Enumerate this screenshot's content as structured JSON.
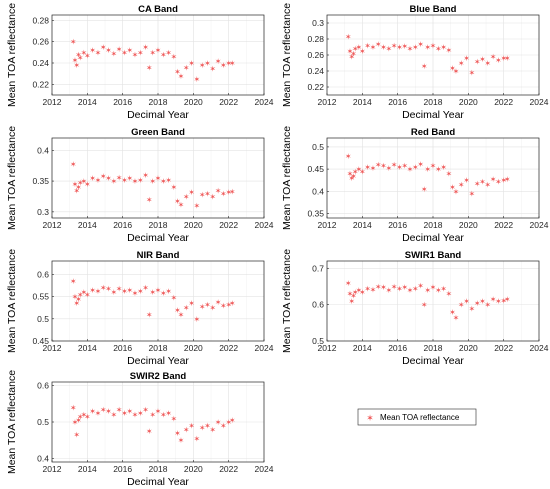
{
  "colors": {
    "marker": "#ef5a5a",
    "grid": "#e3e3e3",
    "axis": "#262626"
  },
  "legend": {
    "label": "Mean TOA reflectance"
  },
  "chart_data": [
    {
      "type": "scatter",
      "title": "CA Band",
      "xlabel": "Decimal Year",
      "ylabel": "Mean TOA reflectance",
      "xlim": [
        2012,
        2024
      ],
      "ylim": [
        0.21,
        0.285
      ],
      "xticks": [
        "2012",
        "2014",
        "2016",
        "2018",
        "2020",
        "2022",
        "2024"
      ],
      "yticks": [
        "0.22",
        "0.24",
        "0.26",
        "0.28"
      ],
      "x": [
        2013.2,
        2013.3,
        2013.4,
        2013.5,
        2013.6,
        2013.8,
        2014.0,
        2014.3,
        2014.6,
        2014.9,
        2015.2,
        2015.5,
        2015.8,
        2016.1,
        2016.4,
        2016.7,
        2017.0,
        2017.3,
        2017.5,
        2017.7,
        2018.0,
        2018.3,
        2018.6,
        2018.9,
        2019.1,
        2019.3,
        2019.6,
        2019.9,
        2020.2,
        2020.5,
        2020.8,
        2021.1,
        2021.4,
        2021.7,
        2022.0,
        2022.2
      ],
      "y": [
        0.26,
        0.243,
        0.238,
        0.248,
        0.245,
        0.25,
        0.247,
        0.252,
        0.25,
        0.255,
        0.252,
        0.249,
        0.253,
        0.25,
        0.252,
        0.248,
        0.25,
        0.255,
        0.236,
        0.25,
        0.252,
        0.248,
        0.25,
        0.246,
        0.232,
        0.228,
        0.236,
        0.24,
        0.225,
        0.238,
        0.24,
        0.235,
        0.242,
        0.238,
        0.24,
        0.24
      ]
    },
    {
      "type": "scatter",
      "title": "Blue Band",
      "xlabel": "Decimal Year",
      "ylabel": "Mean TOA reflectance",
      "xlim": [
        2012,
        2024
      ],
      "ylim": [
        0.21,
        0.31
      ],
      "xticks": [
        "2012",
        "2014",
        "2016",
        "2018",
        "2020",
        "2022",
        "2024"
      ],
      "yticks": [
        "0.22",
        "0.24",
        "0.26",
        "0.28",
        "0.3"
      ],
      "x": [
        2013.2,
        2013.3,
        2013.4,
        2013.5,
        2013.6,
        2013.8,
        2014.0,
        2014.3,
        2014.6,
        2014.9,
        2015.2,
        2015.5,
        2015.8,
        2016.1,
        2016.4,
        2016.7,
        2017.0,
        2017.3,
        2017.5,
        2017.7,
        2018.0,
        2018.3,
        2018.6,
        2018.9,
        2019.1,
        2019.3,
        2019.6,
        2019.9,
        2020.2,
        2020.5,
        2020.8,
        2021.1,
        2021.4,
        2021.7,
        2022.0,
        2022.2
      ],
      "y": [
        0.283,
        0.265,
        0.258,
        0.262,
        0.268,
        0.27,
        0.265,
        0.272,
        0.27,
        0.274,
        0.27,
        0.268,
        0.272,
        0.27,
        0.271,
        0.268,
        0.27,
        0.274,
        0.246,
        0.27,
        0.272,
        0.268,
        0.27,
        0.266,
        0.244,
        0.24,
        0.25,
        0.256,
        0.238,
        0.252,
        0.255,
        0.25,
        0.258,
        0.254,
        0.256,
        0.256
      ]
    },
    {
      "type": "scatter",
      "title": "Green Band",
      "xlabel": "Decimal Year",
      "ylabel": "Mean TOA reflectance",
      "xlim": [
        2012,
        2024
      ],
      "ylim": [
        0.29,
        0.42
      ],
      "xticks": [
        "2012",
        "2014",
        "2016",
        "2018",
        "2020",
        "2022",
        "2024"
      ],
      "yticks": [
        "0.3",
        "0.35",
        "0.4"
      ],
      "x": [
        2013.2,
        2013.3,
        2013.4,
        2013.5,
        2013.6,
        2013.8,
        2014.0,
        2014.3,
        2014.6,
        2014.9,
        2015.2,
        2015.5,
        2015.8,
        2016.1,
        2016.4,
        2016.7,
        2017.0,
        2017.3,
        2017.5,
        2017.7,
        2018.0,
        2018.3,
        2018.6,
        2018.9,
        2019.1,
        2019.3,
        2019.6,
        2019.9,
        2020.2,
        2020.5,
        2020.8,
        2021.1,
        2021.4,
        2021.7,
        2022.0,
        2022.2
      ],
      "y": [
        0.378,
        0.345,
        0.335,
        0.34,
        0.348,
        0.35,
        0.345,
        0.355,
        0.352,
        0.358,
        0.355,
        0.35,
        0.356,
        0.352,
        0.355,
        0.35,
        0.352,
        0.36,
        0.32,
        0.35,
        0.355,
        0.35,
        0.352,
        0.34,
        0.318,
        0.312,
        0.325,
        0.332,
        0.31,
        0.328,
        0.33,
        0.325,
        0.335,
        0.33,
        0.332,
        0.333
      ]
    },
    {
      "type": "scatter",
      "title": "Red Band",
      "xlabel": "Decimal Year",
      "ylabel": "Mean TOA reflectance",
      "xlim": [
        2012,
        2024
      ],
      "ylim": [
        0.34,
        0.52
      ],
      "xticks": [
        "2012",
        "2014",
        "2016",
        "2018",
        "2020",
        "2022",
        "2024"
      ],
      "yticks": [
        "0.35",
        "0.4",
        "0.45",
        "0.5"
      ],
      "x": [
        2013.2,
        2013.3,
        2013.4,
        2013.5,
        2013.6,
        2013.8,
        2014.0,
        2014.3,
        2014.6,
        2014.9,
        2015.2,
        2015.5,
        2015.8,
        2016.1,
        2016.4,
        2016.7,
        2017.0,
        2017.3,
        2017.5,
        2017.7,
        2018.0,
        2018.3,
        2018.6,
        2018.9,
        2019.1,
        2019.3,
        2019.6,
        2019.9,
        2020.2,
        2020.5,
        2020.8,
        2021.1,
        2021.4,
        2021.7,
        2022.0,
        2022.2
      ],
      "y": [
        0.48,
        0.44,
        0.43,
        0.435,
        0.445,
        0.45,
        0.445,
        0.455,
        0.452,
        0.46,
        0.458,
        0.452,
        0.46,
        0.455,
        0.458,
        0.45,
        0.455,
        0.462,
        0.405,
        0.45,
        0.458,
        0.45,
        0.455,
        0.44,
        0.41,
        0.4,
        0.415,
        0.425,
        0.395,
        0.418,
        0.422,
        0.415,
        0.428,
        0.422,
        0.425,
        0.428
      ]
    },
    {
      "type": "scatter",
      "title": "NIR Band",
      "xlabel": "Decimal Year",
      "ylabel": "Mean TOA reflectance",
      "xlim": [
        2012,
        2024
      ],
      "ylim": [
        0.45,
        0.63
      ],
      "xticks": [
        "2012",
        "2014",
        "2016",
        "2018",
        "2020",
        "2022",
        "2024"
      ],
      "yticks": [
        "0.45",
        "0.5",
        "0.55",
        "0.6"
      ],
      "x": [
        2013.2,
        2013.3,
        2013.4,
        2013.5,
        2013.6,
        2013.8,
        2014.0,
        2014.3,
        2014.6,
        2014.9,
        2015.2,
        2015.5,
        2015.8,
        2016.1,
        2016.4,
        2016.7,
        2017.0,
        2017.3,
        2017.5,
        2017.7,
        2018.0,
        2018.3,
        2018.6,
        2018.9,
        2019.1,
        2019.3,
        2019.6,
        2019.9,
        2020.2,
        2020.5,
        2020.8,
        2021.1,
        2021.4,
        2021.7,
        2022.0,
        2022.2
      ],
      "y": [
        0.585,
        0.55,
        0.535,
        0.545,
        0.555,
        0.56,
        0.555,
        0.565,
        0.562,
        0.57,
        0.568,
        0.56,
        0.568,
        0.562,
        0.565,
        0.558,
        0.562,
        0.57,
        0.51,
        0.56,
        0.565,
        0.558,
        0.562,
        0.548,
        0.52,
        0.51,
        0.525,
        0.535,
        0.5,
        0.528,
        0.532,
        0.525,
        0.538,
        0.53,
        0.532,
        0.535
      ]
    },
    {
      "type": "scatter",
      "title": "SWIR1 Band",
      "xlabel": "Decimal Year",
      "ylabel": "Mean TOA reflectance",
      "xlim": [
        2012,
        2024
      ],
      "ylim": [
        0.5,
        0.72
      ],
      "xticks": [
        "2012",
        "2014",
        "2016",
        "2018",
        "2020",
        "2022",
        "2024"
      ],
      "yticks": [
        "0.5",
        "0.6",
        "0.7"
      ],
      "x": [
        2013.2,
        2013.3,
        2013.4,
        2013.5,
        2013.6,
        2013.8,
        2014.0,
        2014.3,
        2014.6,
        2014.9,
        2015.2,
        2015.5,
        2015.8,
        2016.1,
        2016.4,
        2016.7,
        2017.0,
        2017.3,
        2017.5,
        2017.7,
        2018.0,
        2018.3,
        2018.6,
        2018.9,
        2019.1,
        2019.3,
        2019.6,
        2019.9,
        2020.2,
        2020.5,
        2020.8,
        2021.1,
        2021.4,
        2021.7,
        2022.0,
        2022.2
      ],
      "y": [
        0.66,
        0.63,
        0.61,
        0.625,
        0.635,
        0.64,
        0.635,
        0.645,
        0.642,
        0.65,
        0.648,
        0.64,
        0.65,
        0.645,
        0.648,
        0.64,
        0.645,
        0.652,
        0.6,
        0.64,
        0.648,
        0.64,
        0.645,
        0.63,
        0.58,
        0.565,
        0.6,
        0.61,
        0.59,
        0.605,
        0.61,
        0.6,
        0.615,
        0.61,
        0.612,
        0.615
      ]
    },
    {
      "type": "scatter",
      "title": "SWIR2 Band",
      "xlabel": "Decimal Year",
      "ylabel": "Mean TOA reflectance",
      "xlim": [
        2012,
        2024
      ],
      "ylim": [
        0.39,
        0.61
      ],
      "xticks": [
        "2012",
        "2014",
        "2016",
        "2018",
        "2020",
        "2022",
        "2024"
      ],
      "yticks": [
        "0.4",
        "0.5",
        "0.6"
      ],
      "x": [
        2013.2,
        2013.3,
        2013.4,
        2013.5,
        2013.6,
        2013.8,
        2014.0,
        2014.3,
        2014.6,
        2014.9,
        2015.2,
        2015.5,
        2015.8,
        2016.1,
        2016.4,
        2016.7,
        2017.0,
        2017.3,
        2017.5,
        2017.7,
        2018.0,
        2018.3,
        2018.6,
        2018.9,
        2019.1,
        2019.3,
        2019.6,
        2019.9,
        2020.2,
        2020.5,
        2020.8,
        2021.1,
        2021.4,
        2021.7,
        2022.0,
        2022.2
      ],
      "y": [
        0.54,
        0.5,
        0.465,
        0.505,
        0.515,
        0.52,
        0.515,
        0.53,
        0.525,
        0.535,
        0.53,
        0.52,
        0.535,
        0.525,
        0.53,
        0.52,
        0.525,
        0.535,
        0.475,
        0.52,
        0.53,
        0.52,
        0.525,
        0.51,
        0.47,
        0.45,
        0.48,
        0.49,
        0.455,
        0.485,
        0.49,
        0.48,
        0.5,
        0.49,
        0.5,
        0.505
      ]
    }
  ]
}
